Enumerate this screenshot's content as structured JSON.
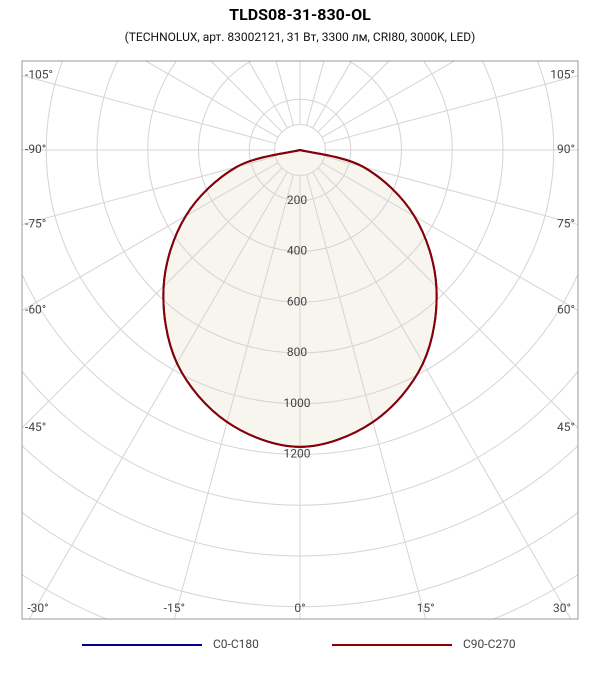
{
  "chart_data": {
    "type": "polar",
    "title": "TLDS08-31-830-OL",
    "subtitle": "(TECHNOLUX, арт. 83002121, 31 Вт, 3300 лм, CRI80, 3000K, LED)",
    "x": [
      -90,
      -75,
      -60,
      -45,
      -30,
      -15,
      0,
      15,
      30,
      45,
      60,
      75,
      90
    ],
    "series": [
      {
        "name": "C0-C180",
        "color": "#00008b",
        "values": [
          0,
          260,
          520,
          760,
          970,
          1110,
          1170,
          1110,
          970,
          760,
          520,
          260,
          0
        ]
      },
      {
        "name": "C90-C270",
        "color": "#8b0000",
        "values": [
          0,
          260,
          520,
          760,
          970,
          1110,
          1170,
          1110,
          970,
          760,
          520,
          260,
          0
        ]
      }
    ],
    "fill_color": "#f8f4ee",
    "rlim": [
      0,
      1600
    ],
    "rticks": [
      200,
      400,
      600,
      800,
      1000,
      1200
    ],
    "thetalim": [
      -180,
      180
    ],
    "thetaticks": [
      {
        "value": -105,
        "label": "-105°"
      },
      {
        "value": -90,
        "label": "-90°"
      },
      {
        "value": -75,
        "label": "-75°"
      },
      {
        "value": -60,
        "label": "-60°"
      },
      {
        "value": -45,
        "label": "-45°"
      },
      {
        "value": -30,
        "label": "-30°"
      },
      {
        "value": -15,
        "label": "-15°"
      },
      {
        "value": 0,
        "label": "0°"
      },
      {
        "value": 15,
        "label": "15°"
      },
      {
        "value": 30,
        "label": "30°"
      },
      {
        "value": 45,
        "label": "45°"
      },
      {
        "value": 60,
        "label": "60°"
      },
      {
        "value": 75,
        "label": "75°"
      },
      {
        "value": 90,
        "label": "90°"
      },
      {
        "value": 105,
        "label": "105°"
      }
    ],
    "grid": true
  }
}
